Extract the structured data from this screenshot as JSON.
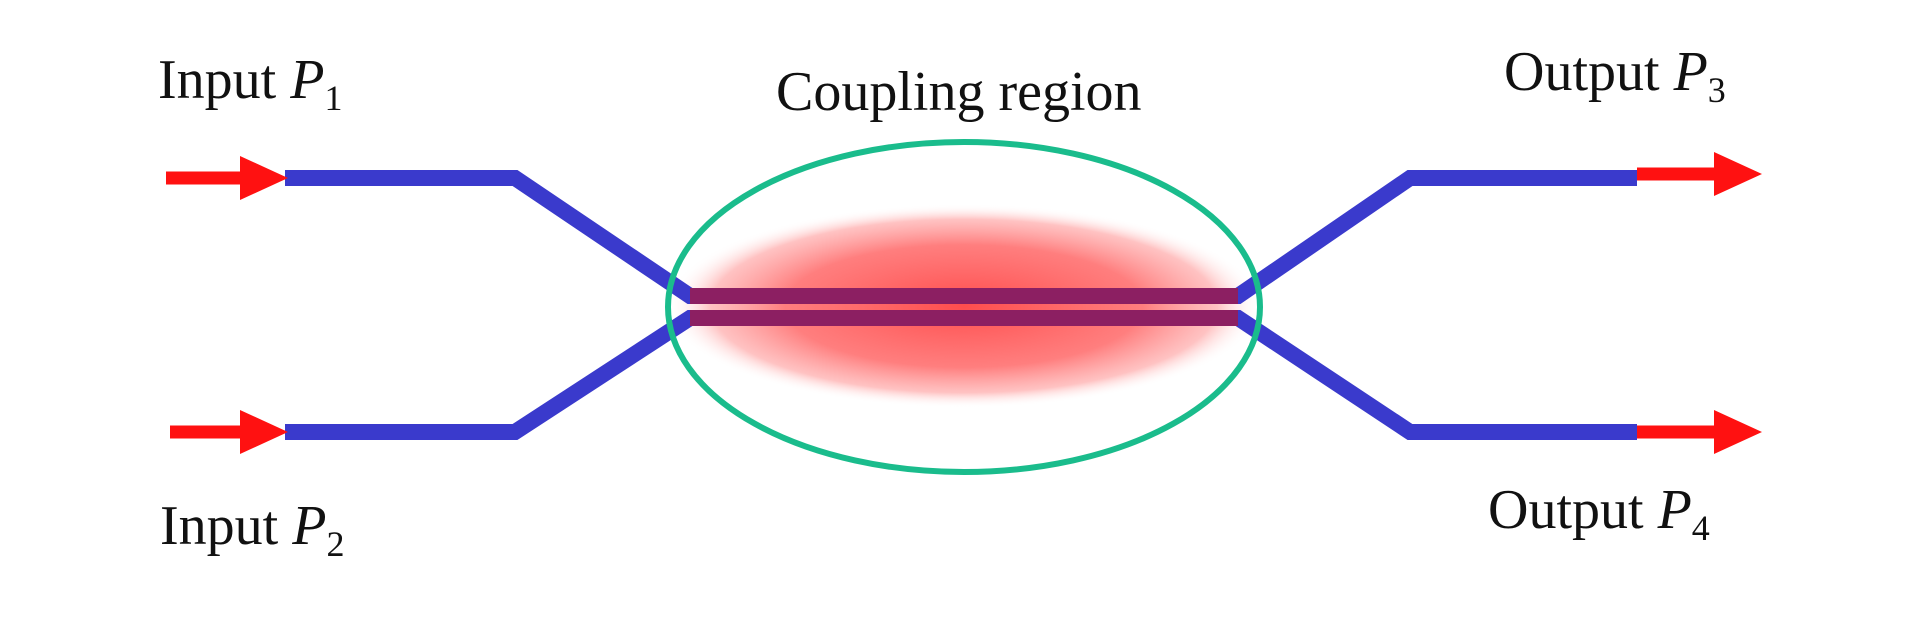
{
  "diagram": {
    "title": "Coupling region",
    "inputs": [
      {
        "word": "Input",
        "symbol": "P",
        "subscript": "1"
      },
      {
        "word": "Input",
        "symbol": "P",
        "subscript": "2"
      }
    ],
    "outputs": [
      {
        "word": "Output",
        "symbol": "P",
        "subscript": "3"
      },
      {
        "word": "Output",
        "symbol": "P",
        "subscript": "4"
      }
    ]
  },
  "colors": {
    "waveguide": "#3a3acc",
    "arrow": "#ff1111",
    "ellipse_outline": "#1abc8c",
    "glow": "#ff5555",
    "core": "#9b1b4f"
  }
}
